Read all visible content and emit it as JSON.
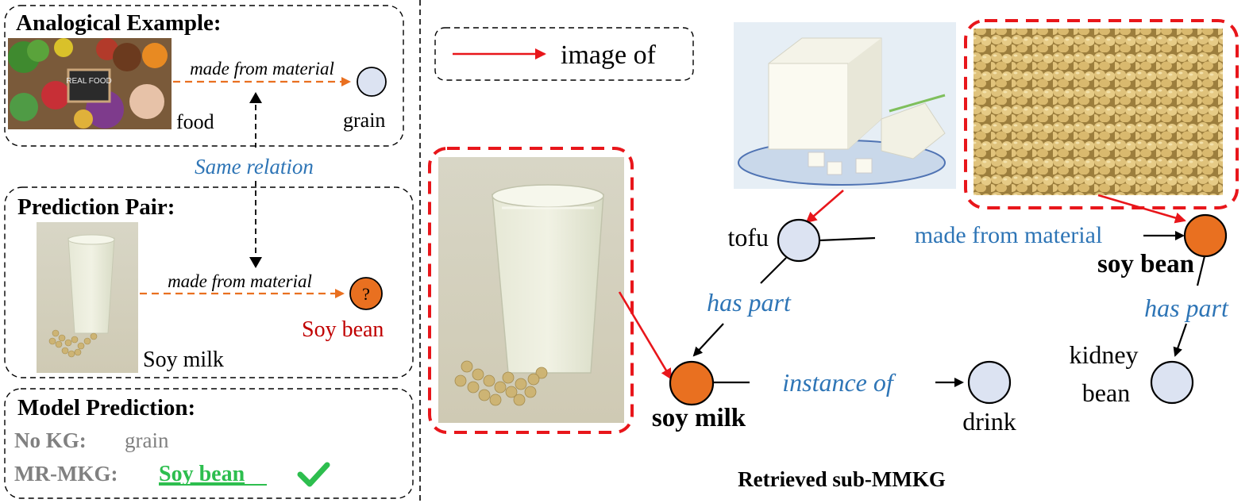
{
  "analogical_example": {
    "title": "Analogical Example:",
    "relation": "made from material",
    "head": "food",
    "tail": "grain",
    "image_text": "REAL FOOD"
  },
  "same_relation": "Same relation",
  "prediction_pair": {
    "title": "Prediction Pair:",
    "relation": "made from material",
    "head": "Soy milk",
    "tail": "Soy bean",
    "unknown_mark": "?"
  },
  "model_prediction": {
    "title": "Model Prediction:",
    "no_kg_label": "No KG:",
    "no_kg_value": "grain",
    "mrmkg_label": "MR-MKG:",
    "mrmkg_value": "Soy bean"
  },
  "legend": {
    "label": "image of"
  },
  "graph": {
    "tofu": "tofu",
    "soy_bean": "soy bean",
    "soy_milk": "soy milk",
    "drink": "drink",
    "kidney_bean_line1": "kidney",
    "kidney_bean_line2": "bean",
    "rel_made_from": "made from material",
    "rel_has_part_1": "has part",
    "rel_has_part_2": "has part",
    "rel_instance_of": "instance of"
  },
  "caption": "Retrieved sub-MMKG",
  "colors": {
    "orange_node": "#E97020",
    "blue_node": "#DCE3F2",
    "relation_blue": "#2E75B6",
    "image_of_red": "#E8161B",
    "dashed_red": "#E8161B",
    "soy_bean_red": "#C00000",
    "check_green": "#2DBE4E",
    "gray_text": "#808080"
  }
}
